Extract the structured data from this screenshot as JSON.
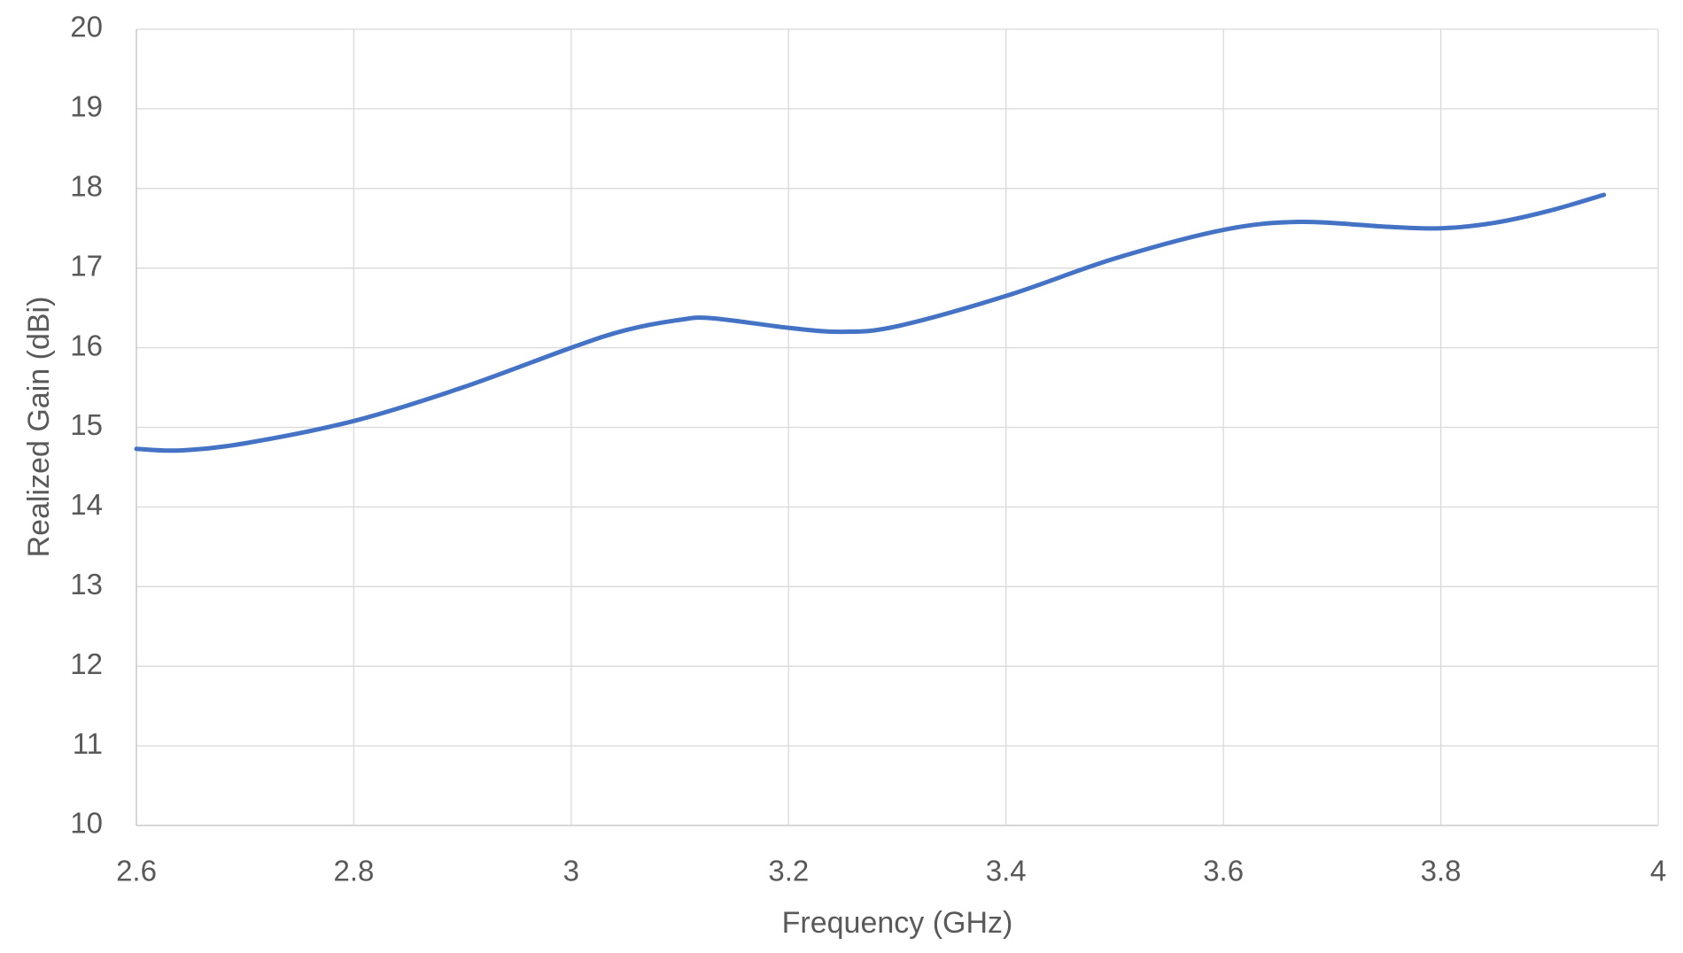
{
  "chart_data": {
    "type": "line",
    "title": "",
    "xlabel": "Frequency (GHz)",
    "ylabel": "Realized Gain (dBi)",
    "xlim": [
      2.6,
      4
    ],
    "ylim": [
      10,
      20
    ],
    "xticks": [
      "2.6",
      "2.8",
      "3",
      "3.2",
      "3.4",
      "3.6",
      "3.8",
      "4"
    ],
    "yticks": [
      "10",
      "11",
      "12",
      "13",
      "14",
      "15",
      "16",
      "17",
      "18",
      "19",
      "20"
    ],
    "grid": true,
    "legend": "none",
    "series": [
      {
        "name": "Realized Gain",
        "color": "#4472C4",
        "x": [
          2.6,
          2.64,
          2.7,
          2.8,
          2.9,
          3.0,
          3.05,
          3.1,
          3.13,
          3.2,
          3.25,
          3.3,
          3.4,
          3.5,
          3.6,
          3.67,
          3.75,
          3.8,
          3.85,
          3.9,
          3.95
        ],
        "y": [
          14.73,
          14.71,
          14.8,
          15.08,
          15.5,
          16.0,
          16.22,
          16.35,
          16.37,
          16.25,
          16.2,
          16.27,
          16.65,
          17.12,
          17.48,
          17.58,
          17.52,
          17.5,
          17.57,
          17.72,
          17.92
        ]
      }
    ]
  }
}
